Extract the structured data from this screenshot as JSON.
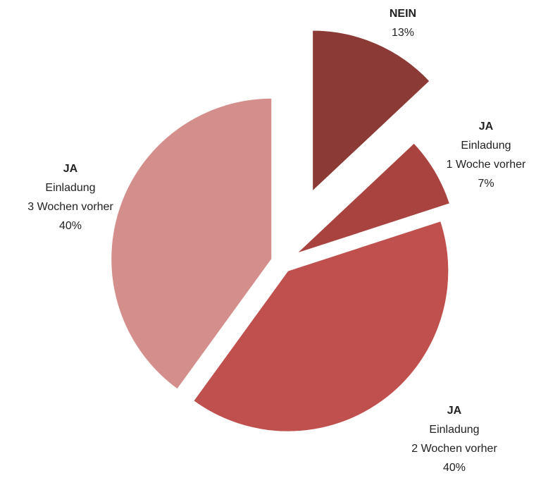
{
  "chart_data": {
    "type": "pie",
    "categories": [
      [
        "NEIN"
      ],
      [
        "JA",
        "Einladung",
        "1 Woche vorher"
      ],
      [
        "JA",
        "Einladung",
        "2 Wochen vorher"
      ],
      [
        "JA",
        "Einladung",
        "3 Wochen vorher"
      ]
    ],
    "values": [
      13,
      7,
      40,
      40
    ],
    "value_labels": [
      "13%",
      "7%",
      "40%",
      "40%"
    ],
    "colors": [
      "#8b3a36",
      "#a9433f",
      "#c0504d",
      "#d48f8d"
    ]
  }
}
